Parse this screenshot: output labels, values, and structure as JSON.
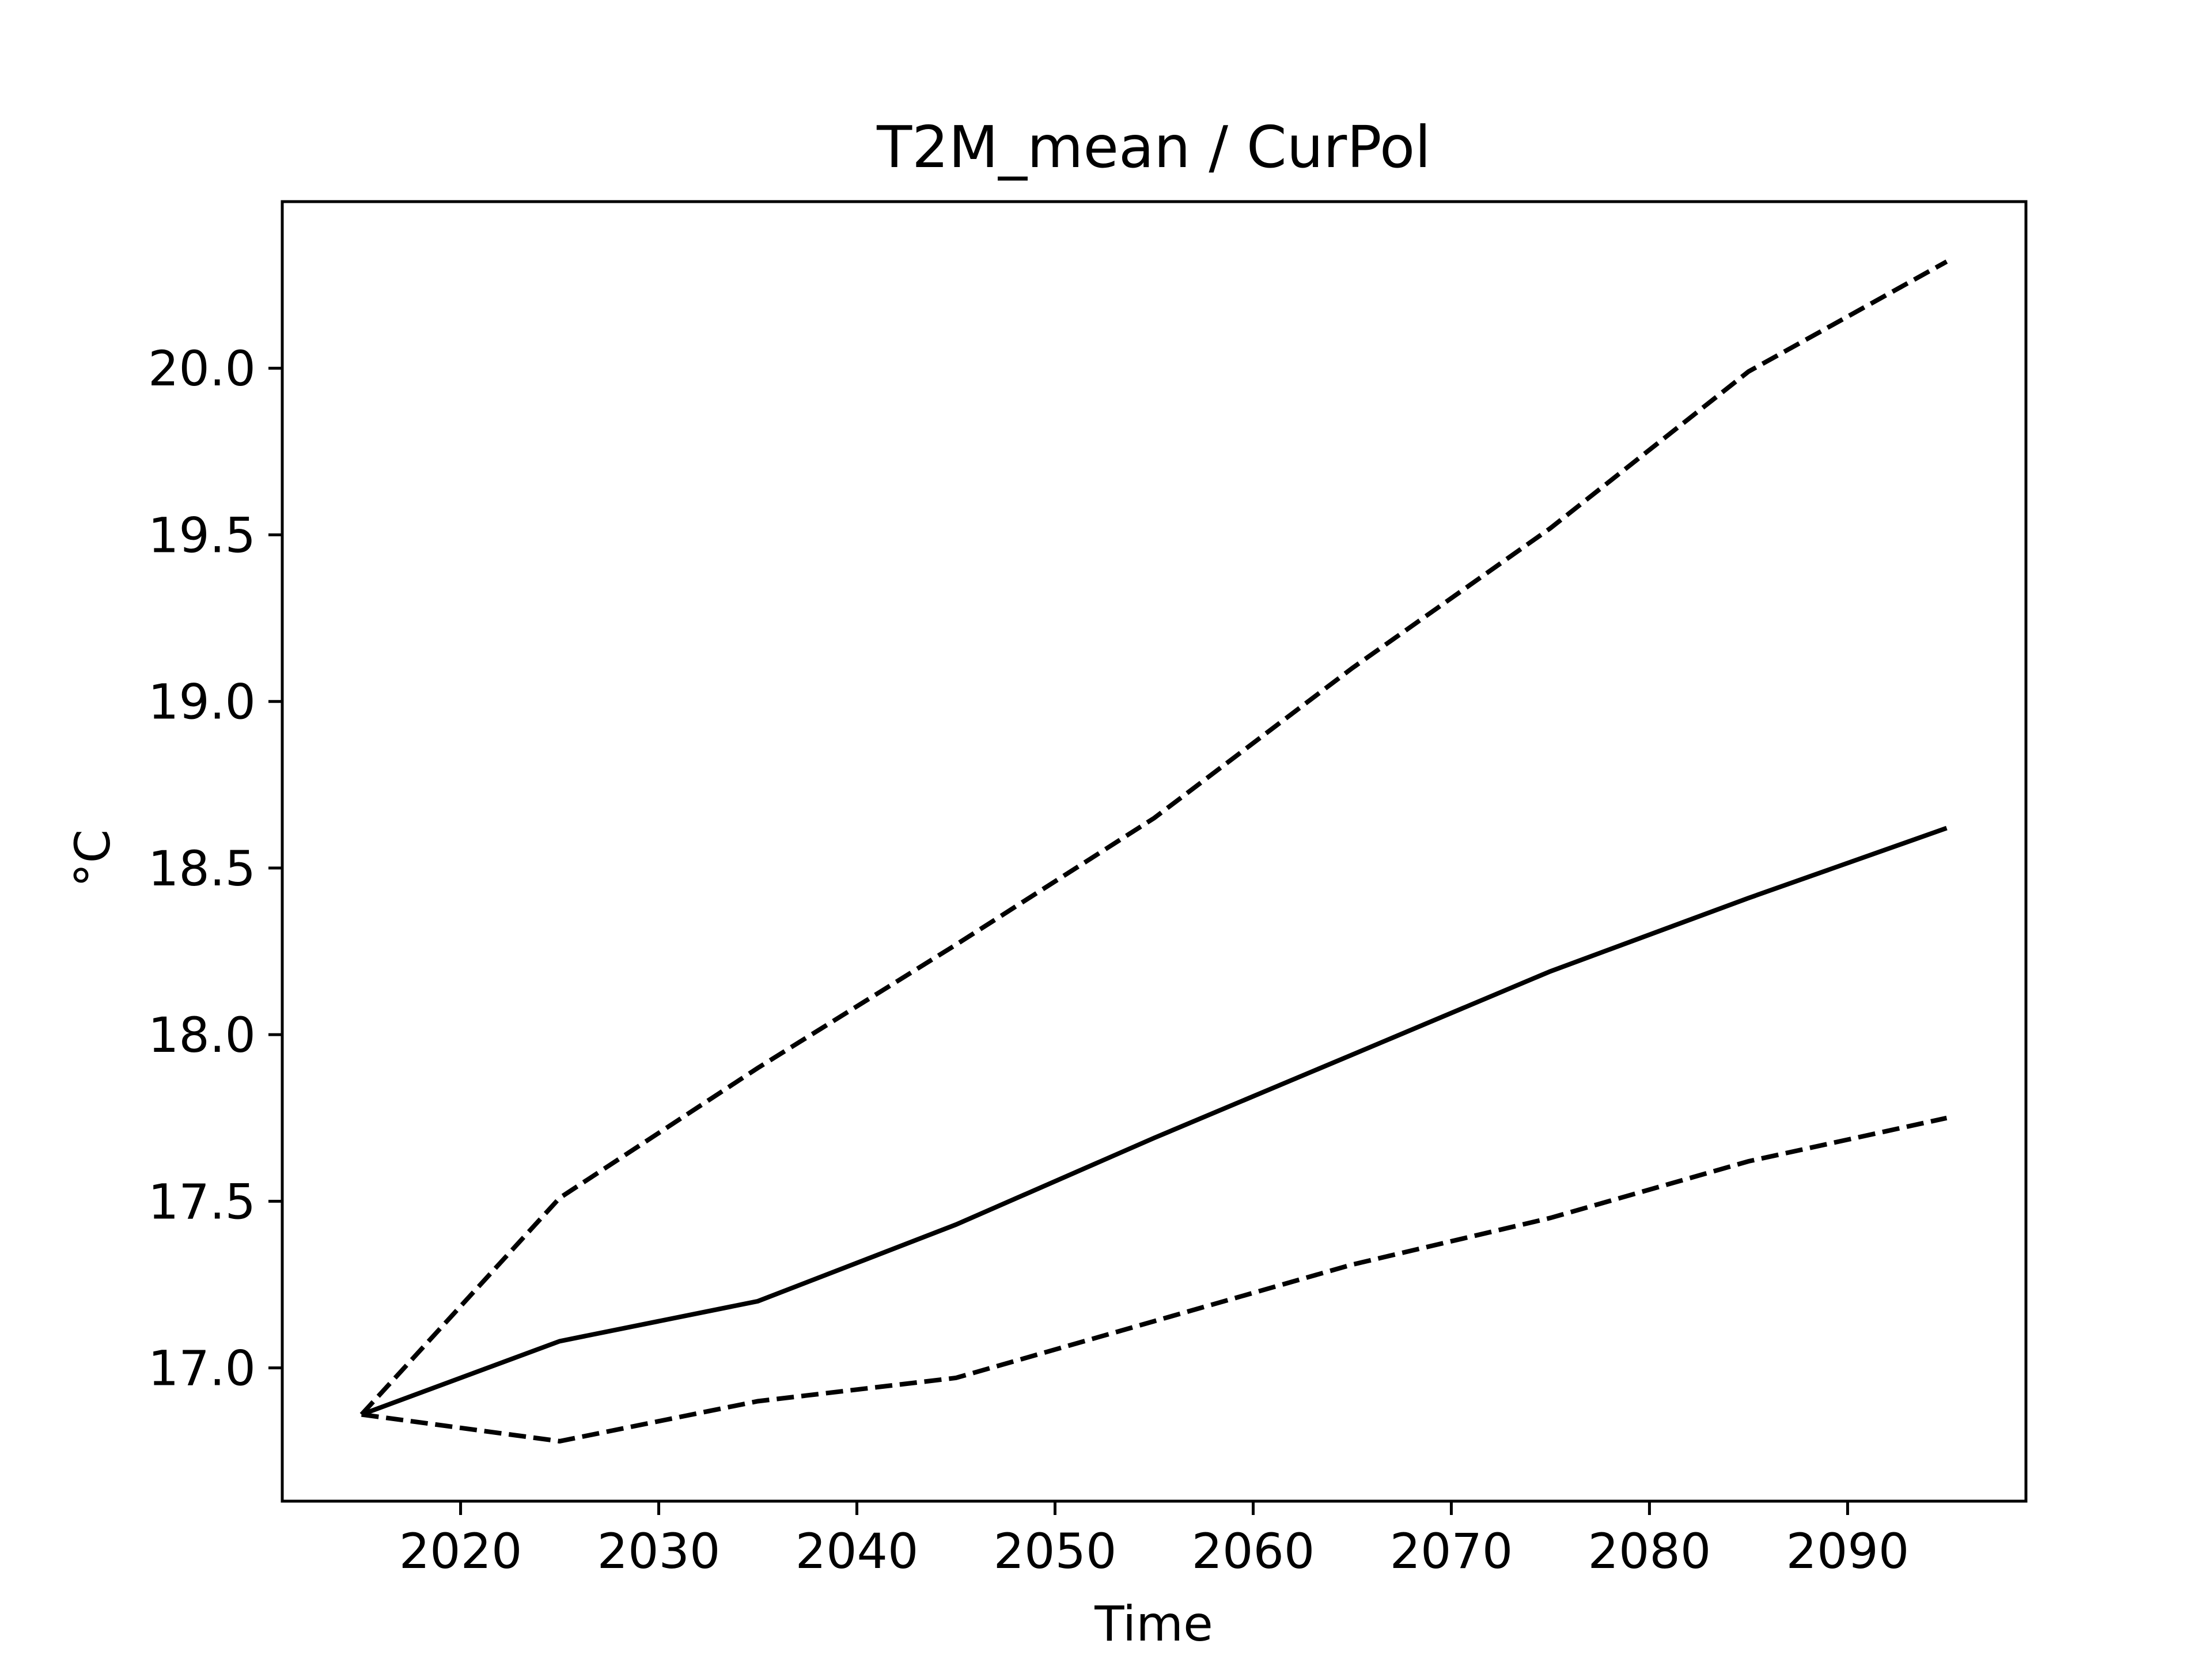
{
  "chart_data": {
    "type": "line",
    "title": "T2M_mean / CurPol",
    "xlabel": "Time",
    "ylabel": "°C",
    "xlim": [
      2011,
      2099
    ],
    "ylim": [
      16.6,
      20.5
    ],
    "grid": false,
    "legend": "none",
    "x_ticks": [
      2020,
      2030,
      2040,
      2050,
      2060,
      2070,
      2080,
      2090
    ],
    "y_ticks": [
      17.0,
      17.5,
      18.0,
      18.5,
      19.0,
      19.5,
      20.0
    ],
    "y_tick_labels": [
      "17.0",
      "17.5",
      "18.0",
      "18.5",
      "19.0",
      "19.5",
      "20.0"
    ],
    "x": [
      2015,
      2025,
      2035,
      2045,
      2055,
      2065,
      2075,
      2085,
      2095
    ],
    "series": [
      {
        "style": "solid",
        "color": "#000000",
        "values": [
          16.86,
          17.08,
          17.2,
          17.43,
          17.69,
          17.94,
          18.19,
          18.41,
          18.62
        ]
      },
      {
        "style": "dashed",
        "color": "#000000",
        "values": [
          16.86,
          17.51,
          17.9,
          18.27,
          18.65,
          19.1,
          19.52,
          19.99,
          20.32
        ]
      },
      {
        "style": "dashed",
        "color": "#000000",
        "values": [
          16.86,
          16.78,
          16.9,
          16.97,
          17.14,
          17.31,
          17.45,
          17.62,
          17.75
        ]
      }
    ]
  }
}
